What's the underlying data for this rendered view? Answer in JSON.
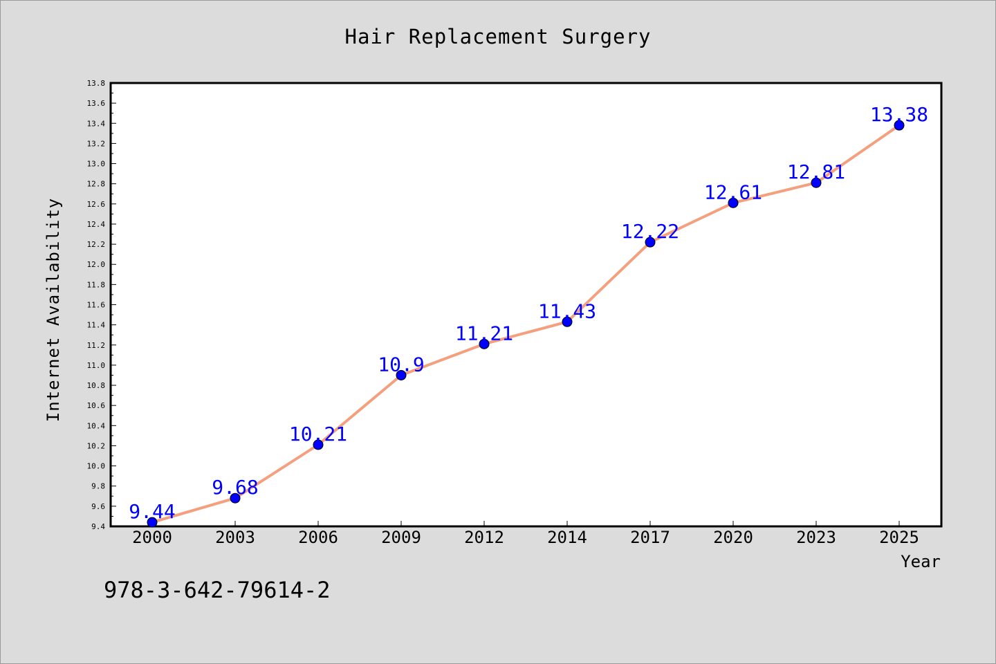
{
  "chart_data": {
    "type": "line",
    "title": "Hair Replacement Surgery",
    "xlabel": "Year",
    "ylabel": "Internet Availability",
    "categories": [
      "2000",
      "2003",
      "2006",
      "2009",
      "2012",
      "2014",
      "2017",
      "2020",
      "2023",
      "2025"
    ],
    "series": [
      {
        "values": [
          9.44,
          9.68,
          10.21,
          10.9,
          11.21,
          11.43,
          12.22,
          12.61,
          12.81,
          13.38
        ],
        "labels": [
          "9.44",
          "9.68",
          "10.21",
          "10.9",
          "11.21",
          "11.43",
          "12.22",
          "12.61",
          "12.81",
          "13.38"
        ],
        "line_color": "#f4a07f",
        "marker_color": "#0000ff"
      }
    ],
    "ylim": [
      9.4,
      13.8
    ],
    "yticks": [
      "9.4",
      "9.6",
      "9.8",
      "10.0",
      "10.2",
      "10.4",
      "10.6",
      "10.8",
      "11.0",
      "11.2",
      "11.4",
      "11.6",
      "11.8",
      "12.0",
      "12.2",
      "12.4",
      "12.6",
      "12.8",
      "13.0",
      "13.2",
      "13.4",
      "13.6",
      "13.8"
    ],
    "grid": false,
    "legend": "none"
  },
  "footnote": "978-3-642-79614-2",
  "colors": {
    "background": "#dcdcdc",
    "plot_area": "#ffffff",
    "line": "#f4a07f",
    "marker": "#0000ff",
    "data_label": "#0000ff"
  }
}
